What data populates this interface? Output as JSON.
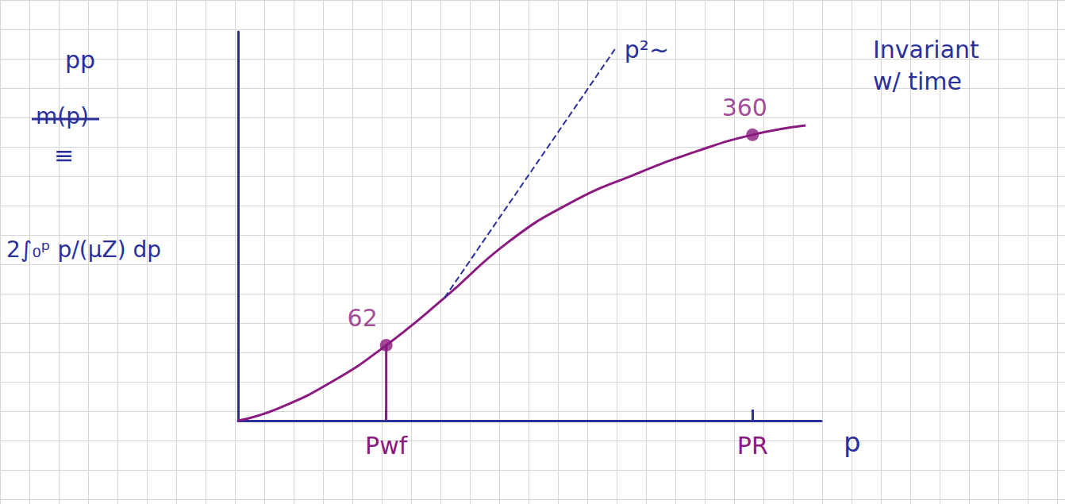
{
  "chart_data": {
    "type": "line",
    "xlabel": "p",
    "xlim": [
      0,
      100
    ],
    "ylim": [
      0,
      100
    ],
    "xticks": [
      {
        "value": 25.4,
        "label": "Pwf"
      },
      {
        "value": 88.2,
        "label": "PR"
      }
    ],
    "yticks": [],
    "tick_labels": "x",
    "series": [
      {
        "color": "#8a1a80",
        "line_style": "solid",
        "x": [
          0,
          6.8,
          16.3,
          25.4,
          35.4,
          46.3,
          57.1,
          68.0,
          78.9,
          88.2,
          97.3
        ],
        "values": [
          0,
          3.1,
          10.2,
          19.4,
          31.6,
          45.9,
          56.1,
          63.3,
          69.4,
          73.5,
          75.9
        ]
      },
      {
        "name": "p²~",
        "color": "#2a2f9c",
        "line_style": "dashed",
        "x": [
          35.4,
          64.6
        ],
        "values": [
          31.6,
          95.5
        ]
      }
    ],
    "markers": [
      {
        "x": 25.4,
        "y": 19.4,
        "label": "62",
        "color": "#8a1a80"
      },
      {
        "x": 88.2,
        "y": 73.5,
        "label": "360",
        "color": "#8a1a80"
      }
    ],
    "annotations": {
      "definition": "pp",
      "struck_out": "m(p)",
      "equivalence": "≡",
      "integral": "2∫₀ᵖ p/(μZ) dp",
      "note": "Invariant w/ time"
    }
  }
}
